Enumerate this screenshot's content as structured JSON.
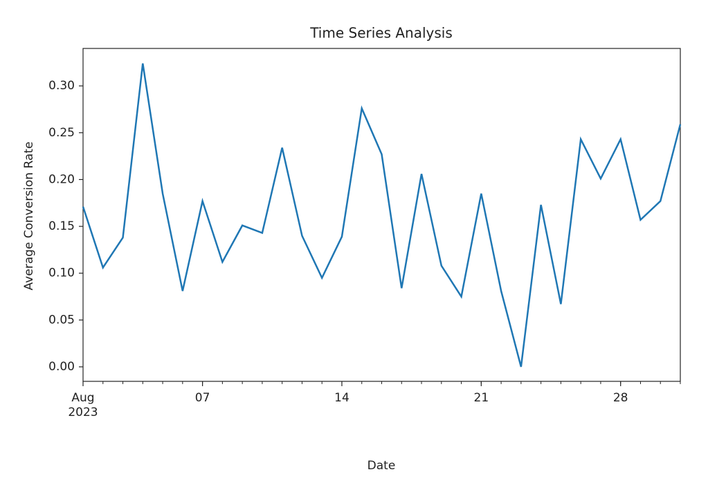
{
  "chart_data": {
    "type": "line",
    "title": "Time Series Analysis",
    "x_label": "Date",
    "y_label": "Average Conversion Rate",
    "x": [
      "2023-08-01",
      "2023-08-02",
      "2023-08-03",
      "2023-08-04",
      "2023-08-05",
      "2023-08-06",
      "2023-08-07",
      "2023-08-08",
      "2023-08-09",
      "2023-08-10",
      "2023-08-11",
      "2023-08-12",
      "2023-08-13",
      "2023-08-14",
      "2023-08-15",
      "2023-08-16",
      "2023-08-17",
      "2023-08-18",
      "2023-08-19",
      "2023-08-20",
      "2023-08-21",
      "2023-08-22",
      "2023-08-23",
      "2023-08-24",
      "2023-08-25",
      "2023-08-26",
      "2023-08-27",
      "2023-08-28",
      "2023-08-29",
      "2023-08-30",
      "2023-08-31"
    ],
    "series": [
      {
        "name": "Average Conversion Rate",
        "color": "#1f77b4",
        "values": [
          0.171,
          0.106,
          0.138,
          0.324,
          0.185,
          0.081,
          0.177,
          0.112,
          0.151,
          0.143,
          0.234,
          0.14,
          0.095,
          0.139,
          0.276,
          0.227,
          0.084,
          0.206,
          0.108,
          0.075,
          0.185,
          0.081,
          0.0,
          0.173,
          0.067,
          0.243,
          0.201,
          0.243,
          0.157,
          0.177,
          0.259
        ]
      }
    ],
    "xlim": [
      "2023-08-01",
      "2023-08-31"
    ],
    "xticks": [
      {
        "value": "2023-08-01",
        "label": "Aug\n2023"
      },
      {
        "value": "2023-08-07",
        "label": "07"
      },
      {
        "value": "2023-08-14",
        "label": "14"
      },
      {
        "value": "2023-08-21",
        "label": "21"
      },
      {
        "value": "2023-08-28",
        "label": "28"
      }
    ],
    "ylim": [
      -0.0155,
      0.34
    ],
    "yticks": [
      {
        "value": 0,
        "label": "0.00"
      },
      {
        "value": 0.05,
        "label": "0.05"
      },
      {
        "value": 0.1,
        "label": "0.10"
      },
      {
        "value": 0.15,
        "label": "0.15"
      },
      {
        "value": 0.2,
        "label": "0.20"
      },
      {
        "value": 0.25,
        "label": "0.25"
      },
      {
        "value": 0.3,
        "label": "0.30"
      }
    ],
    "grid": false
  }
}
